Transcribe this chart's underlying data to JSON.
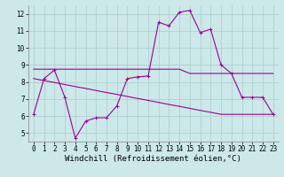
{
  "x": [
    0,
    1,
    2,
    3,
    4,
    5,
    6,
    7,
    8,
    9,
    10,
    11,
    12,
    13,
    14,
    15,
    16,
    17,
    18,
    19,
    20,
    21,
    22,
    23
  ],
  "line1": [
    6.1,
    8.2,
    8.7,
    7.1,
    4.7,
    5.7,
    5.9,
    5.9,
    6.6,
    8.2,
    8.3,
    8.35,
    11.5,
    11.3,
    12.1,
    12.2,
    10.9,
    11.1,
    9.0,
    8.5,
    7.1,
    7.1,
    7.1,
    6.1
  ],
  "straight_line1": [
    8.75,
    8.75,
    8.75,
    8.75,
    8.75,
    8.75,
    8.75,
    8.75,
    8.75,
    8.75,
    8.75,
    8.75,
    8.75,
    8.75,
    8.75,
    8.5,
    8.5,
    8.5,
    8.5,
    8.5,
    8.5,
    8.5,
    8.5,
    8.5
  ],
  "straight_line2": [
    8.2,
    8.08,
    7.97,
    7.85,
    7.73,
    7.62,
    7.5,
    7.38,
    7.27,
    7.15,
    7.03,
    6.92,
    6.8,
    6.68,
    6.57,
    6.45,
    6.33,
    6.22,
    6.1,
    6.1,
    6.1,
    6.1,
    6.1,
    6.1
  ],
  "line_color": "#990099",
  "bg_color": "#cce8e8",
  "grid_color": "#aacccc",
  "xlabel": "Windchill (Refroidissement éolien,°C)",
  "ylim": [
    4.5,
    12.5
  ],
  "xlim": [
    -0.5,
    23.5
  ],
  "yticks": [
    5,
    6,
    7,
    8,
    9,
    10,
    11,
    12
  ],
  "xticks": [
    0,
    1,
    2,
    3,
    4,
    5,
    6,
    7,
    8,
    9,
    10,
    11,
    12,
    13,
    14,
    15,
    16,
    17,
    18,
    19,
    20,
    21,
    22,
    23
  ],
  "marker": "+",
  "markersize": 3,
  "linewidth": 0.8,
  "xlabel_fontsize": 6.5,
  "tick_fontsize": 5.5
}
